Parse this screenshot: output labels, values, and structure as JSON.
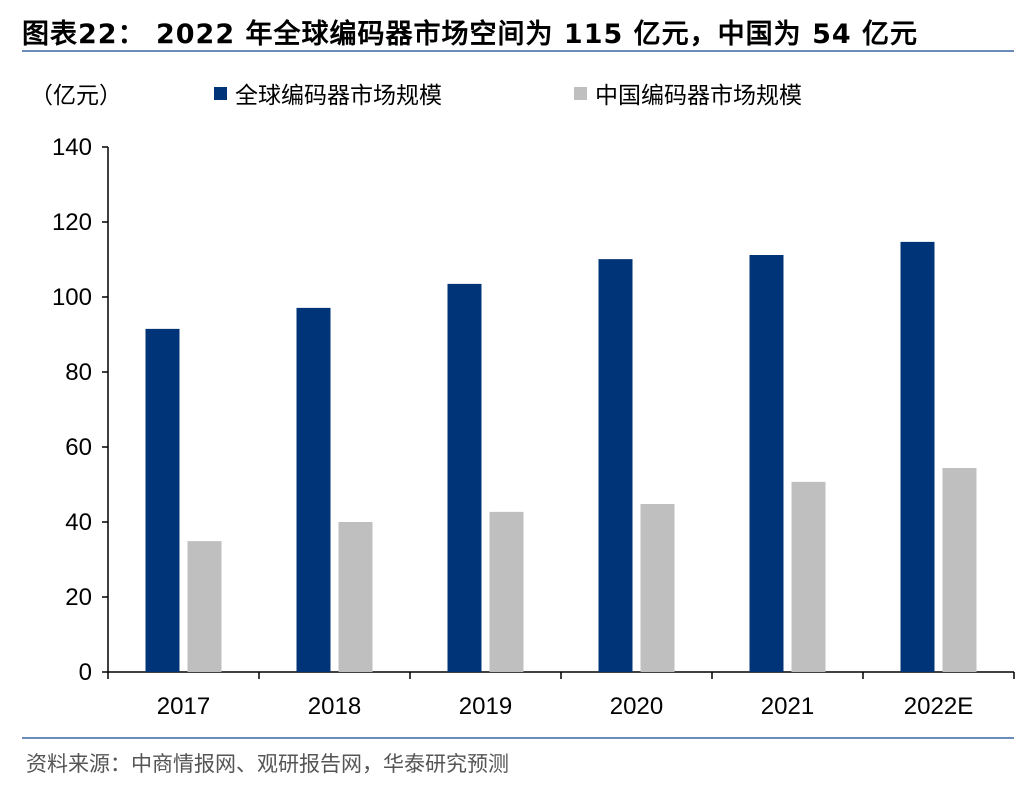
{
  "title": "图表22： 2022 年全球编码器市场空间为 115 亿元，中国为 54 亿元",
  "source": "资料来源：中商情报网、观研报告网，华泰研究预测",
  "chart_data": {
    "type": "bar",
    "title": "图表22： 2022 年全球编码器市场空间为 115 亿元，中国为 54 亿元",
    "ylabel": "（亿元）",
    "xlabel": "",
    "categories": [
      "2017",
      "2018",
      "2019",
      "2020",
      "2021",
      "2022E"
    ],
    "ylim": [
      0,
      140
    ],
    "yticks": [
      "0",
      "20",
      "40",
      "60",
      "80",
      "100",
      "120",
      "140"
    ],
    "grid": false,
    "legend_position": "top",
    "series": [
      {
        "name": "全球编码器市场规模",
        "color": "#003478",
        "values": [
          91.5,
          97.1,
          103.5,
          110.1,
          111.2,
          114.7
        ]
      },
      {
        "name": "中国编码器市场规模",
        "color": "#bfbfbf",
        "values": [
          34.9,
          40.0,
          42.7,
          44.8,
          50.7,
          54.4
        ]
      }
    ]
  }
}
